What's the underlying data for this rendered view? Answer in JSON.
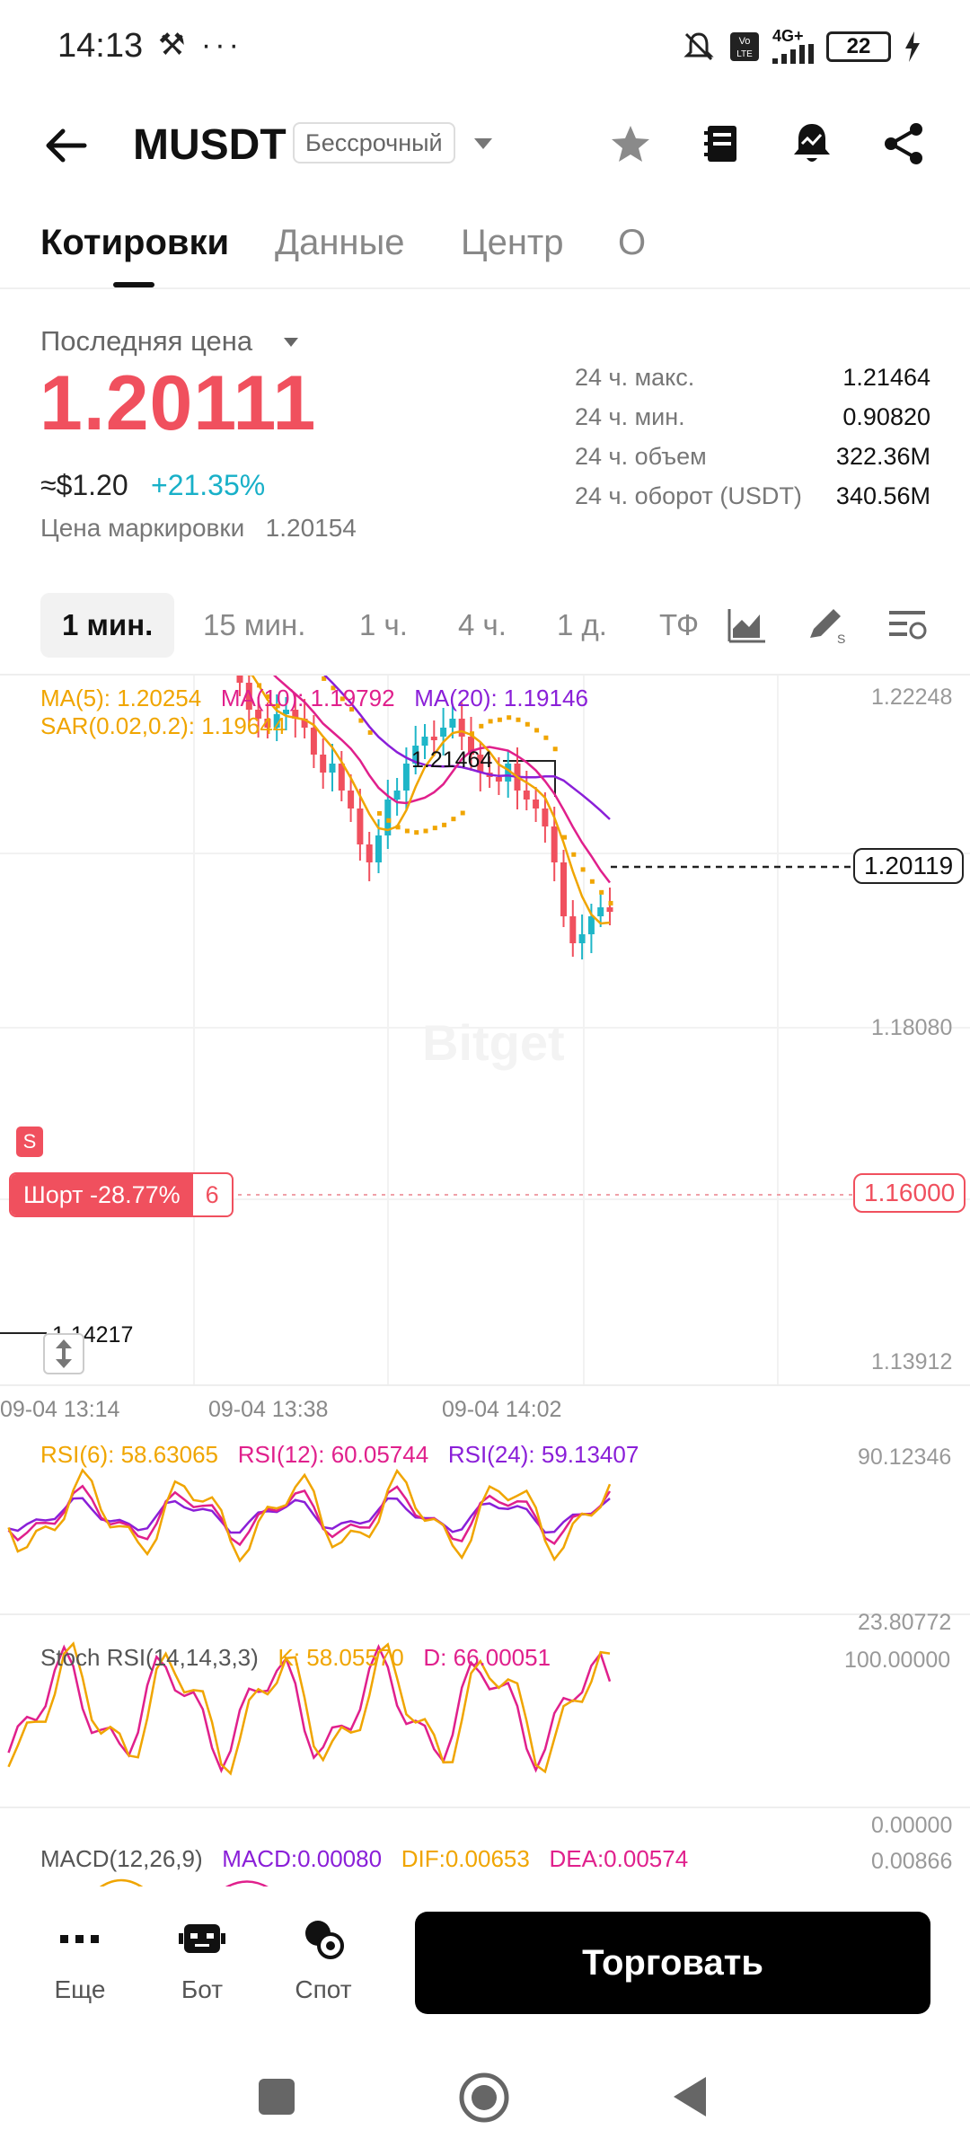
{
  "status_bar": {
    "time": "14:13",
    "left_icons": "⚒ ···",
    "network": "4G+",
    "battery": "22"
  },
  "header": {
    "pair": "MUSDT",
    "badge": "Бессрочный"
  },
  "tabs": [
    "Котировки",
    "Данные",
    "Центр",
    "О"
  ],
  "price": {
    "label": "Последняя цена",
    "last": "1.20111",
    "usd": "≈$1.20",
    "change": "+21.35%",
    "mark_label": "Цена маркировки",
    "mark_value": "1.20154"
  },
  "stats": [
    {
      "label": "24 ч. макс.",
      "value": "1.21464"
    },
    {
      "label": "24 ч. мин.",
      "value": "0.90820"
    },
    {
      "label": "24 ч. объем",
      "value": "322.36M"
    },
    {
      "label": "24 ч. оборот (USDT)",
      "value": "340.56M"
    }
  ],
  "timeframes": [
    "1 мин.",
    "15 мин.",
    "1 ч.",
    "4 ч.",
    "1 д.",
    "ТФ"
  ],
  "chart": {
    "ma5": "MA(5): 1.20254",
    "ma10": "MA(10): 1.19792",
    "ma20": "MA(20): 1.19146",
    "sar": "SAR(0.02,0.2): 1.19644",
    "y_labels": [
      "1.22248",
      "1.18080",
      "1.13912"
    ],
    "high_marker": "1.21464",
    "low_marker": "1.14217",
    "current_price": "1.20119",
    "short_label": "Шорт -28.77%",
    "short_count": "6",
    "short_price": "1.16000",
    "s_badge": "S",
    "times": [
      "09-04 13:14",
      "09-04 13:38",
      "09-04 14:02"
    ]
  },
  "rsi": {
    "rsi6": "RSI(6): 58.63065",
    "rsi12": "RSI(12): 60.05744",
    "rsi24": "RSI(24): 59.13407",
    "top": "90.12346",
    "bottom": "23.80772"
  },
  "stoch": {
    "label": "Stoch RSI(14,14,3,3)",
    "k": "K: 58.05570",
    "d": "D: 66.00051",
    "top": "100.00000",
    "bottom": "0.00000"
  },
  "macd": {
    "label": "MACD(12,26,9)",
    "macd": "MACD:0.00080",
    "dif": "DIF:0.00653",
    "dea": "DEA:0.00574",
    "top": "0.00866"
  },
  "bottom_nav": {
    "more": "Еще",
    "bot": "Бот",
    "spot": "Спот",
    "trade": "Торговать"
  },
  "colors": {
    "up": "#1fb6c8",
    "down": "#f0505e",
    "ma5": "#f0a500",
    "ma10": "#e0208c",
    "ma20": "#8a1fd8"
  }
}
